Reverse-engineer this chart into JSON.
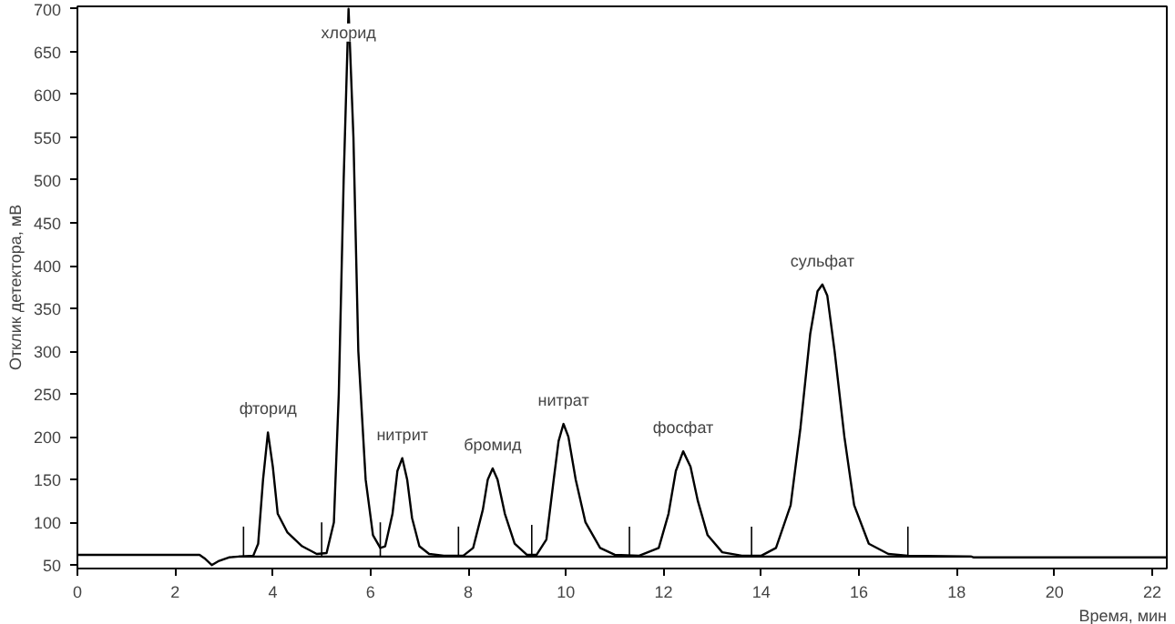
{
  "chart_data": {
    "type": "line",
    "xlabel": "Время, мин",
    "ylabel": "Отклик детектора, мВ",
    "xlim": [
      0,
      22.3
    ],
    "ylim": [
      46,
      703
    ],
    "xticks": [
      0,
      2,
      4,
      6,
      8,
      10,
      12,
      14,
      16,
      18,
      20,
      22
    ],
    "yticks": [
      50,
      100,
      150,
      200,
      250,
      300,
      350,
      400,
      450,
      500,
      550,
      600,
      650,
      700
    ],
    "grid": false,
    "marker": "none",
    "line_style": "solid",
    "series": [
      {
        "color": "#000000",
        "x": [
          0,
          2.5,
          2.6,
          2.75,
          2.9,
          3.1,
          3.3,
          3.6,
          3.7,
          3.8,
          3.9,
          4.0,
          4.1,
          4.3,
          4.6,
          4.9,
          5.1,
          5.25,
          5.35,
          5.45,
          5.55,
          5.65,
          5.75,
          5.9,
          6.05,
          6.2,
          6.3,
          6.45,
          6.55,
          6.65,
          6.75,
          6.85,
          7.0,
          7.2,
          7.5,
          7.9,
          8.1,
          8.3,
          8.4,
          8.5,
          8.6,
          8.75,
          8.95,
          9.2,
          9.4,
          9.6,
          9.75,
          9.85,
          9.95,
          10.05,
          10.2,
          10.4,
          10.7,
          11.0,
          11.5,
          11.9,
          12.1,
          12.25,
          12.4,
          12.55,
          12.7,
          12.9,
          13.2,
          13.6,
          14.0,
          14.3,
          14.6,
          14.8,
          15.0,
          15.15,
          15.25,
          15.35,
          15.5,
          15.7,
          15.9,
          16.2,
          16.6,
          17.0,
          18.3,
          18.35,
          22.3
        ],
        "values": [
          62,
          62,
          58,
          50,
          55,
          59,
          60,
          61,
          75,
          150,
          205,
          165,
          110,
          88,
          72,
          63,
          64,
          100,
          250,
          500,
          700,
          550,
          300,
          150,
          85,
          70,
          72,
          110,
          160,
          175,
          150,
          105,
          72,
          63,
          61,
          61,
          70,
          115,
          150,
          163,
          150,
          110,
          75,
          62,
          62,
          80,
          150,
          195,
          215,
          200,
          150,
          100,
          70,
          62,
          61,
          70,
          110,
          160,
          183,
          165,
          125,
          85,
          65,
          61,
          61,
          70,
          120,
          210,
          320,
          370,
          378,
          365,
          300,
          200,
          120,
          75,
          63,
          61,
          60,
          59,
          59
        ]
      },
      {
        "color": "#000000",
        "x": [
          3.3,
          18.3
        ],
        "values": [
          60,
          60
        ]
      },
      {
        "type": "bar",
        "color": "#000000",
        "x": [
          3.4,
          5.0,
          6.2,
          7.8,
          9.3,
          11.3,
          13.8,
          17.0
        ],
        "base": [
          60,
          60,
          60,
          60,
          60,
          60,
          60,
          60
        ],
        "values": [
          35,
          40,
          40,
          35,
          37,
          35,
          35,
          35
        ]
      }
    ],
    "annotations": [
      {
        "text": "фторид",
        "x": 3.9,
        "y": 205
      },
      {
        "text": "хлорид",
        "x": 5.55,
        "y": 700
      },
      {
        "text": "нитрит",
        "x": 6.65,
        "y": 175
      },
      {
        "text": "бромид",
        "x": 8.5,
        "y": 163
      },
      {
        "text": "нитрат",
        "x": 9.95,
        "y": 215
      },
      {
        "text": "фосфат",
        "x": 12.4,
        "y": 183
      },
      {
        "text": "сульфат",
        "x": 15.25,
        "y": 378
      }
    ]
  }
}
